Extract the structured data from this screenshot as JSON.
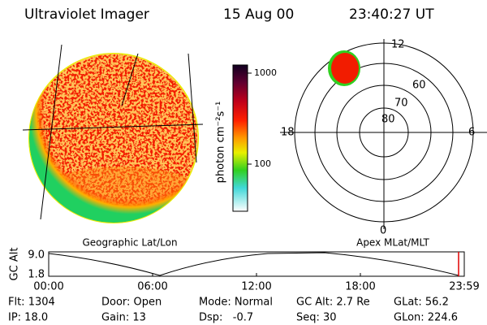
{
  "header": {
    "instrument": "Ultraviolet Imager",
    "date": "15 Aug 00",
    "time": "23:40:27 UT"
  },
  "colorbar": {
    "label": "photon cm⁻²s⁻¹",
    "ticks": [
      "1000",
      "100"
    ]
  },
  "polar": {
    "mlt_labels": [
      "12",
      "18",
      "6",
      "0"
    ],
    "mlat_labels": [
      "60",
      "70",
      "80"
    ]
  },
  "panel_labels": {
    "left": "Geographic Lat/Lon",
    "right": "Apex MLat/MLT"
  },
  "altitude": {
    "axis_label": "GC Alt",
    "yticks": [
      "9.0",
      "1.8"
    ],
    "xticks": [
      "00:00",
      "06:00",
      "12:00",
      "18:00",
      "23:59"
    ]
  },
  "info": {
    "rows": [
      [
        "Flt: 1304",
        "Door: Open",
        "Mode: Normal",
        "GC Alt: 2.7 Re",
        "GLat: 56.2"
      ],
      [
        "IP: 18.0",
        "Gain: 13",
        "Dsp:   -0.7",
        "Seq: 30",
        "GLon: 224.6"
      ]
    ]
  }
}
